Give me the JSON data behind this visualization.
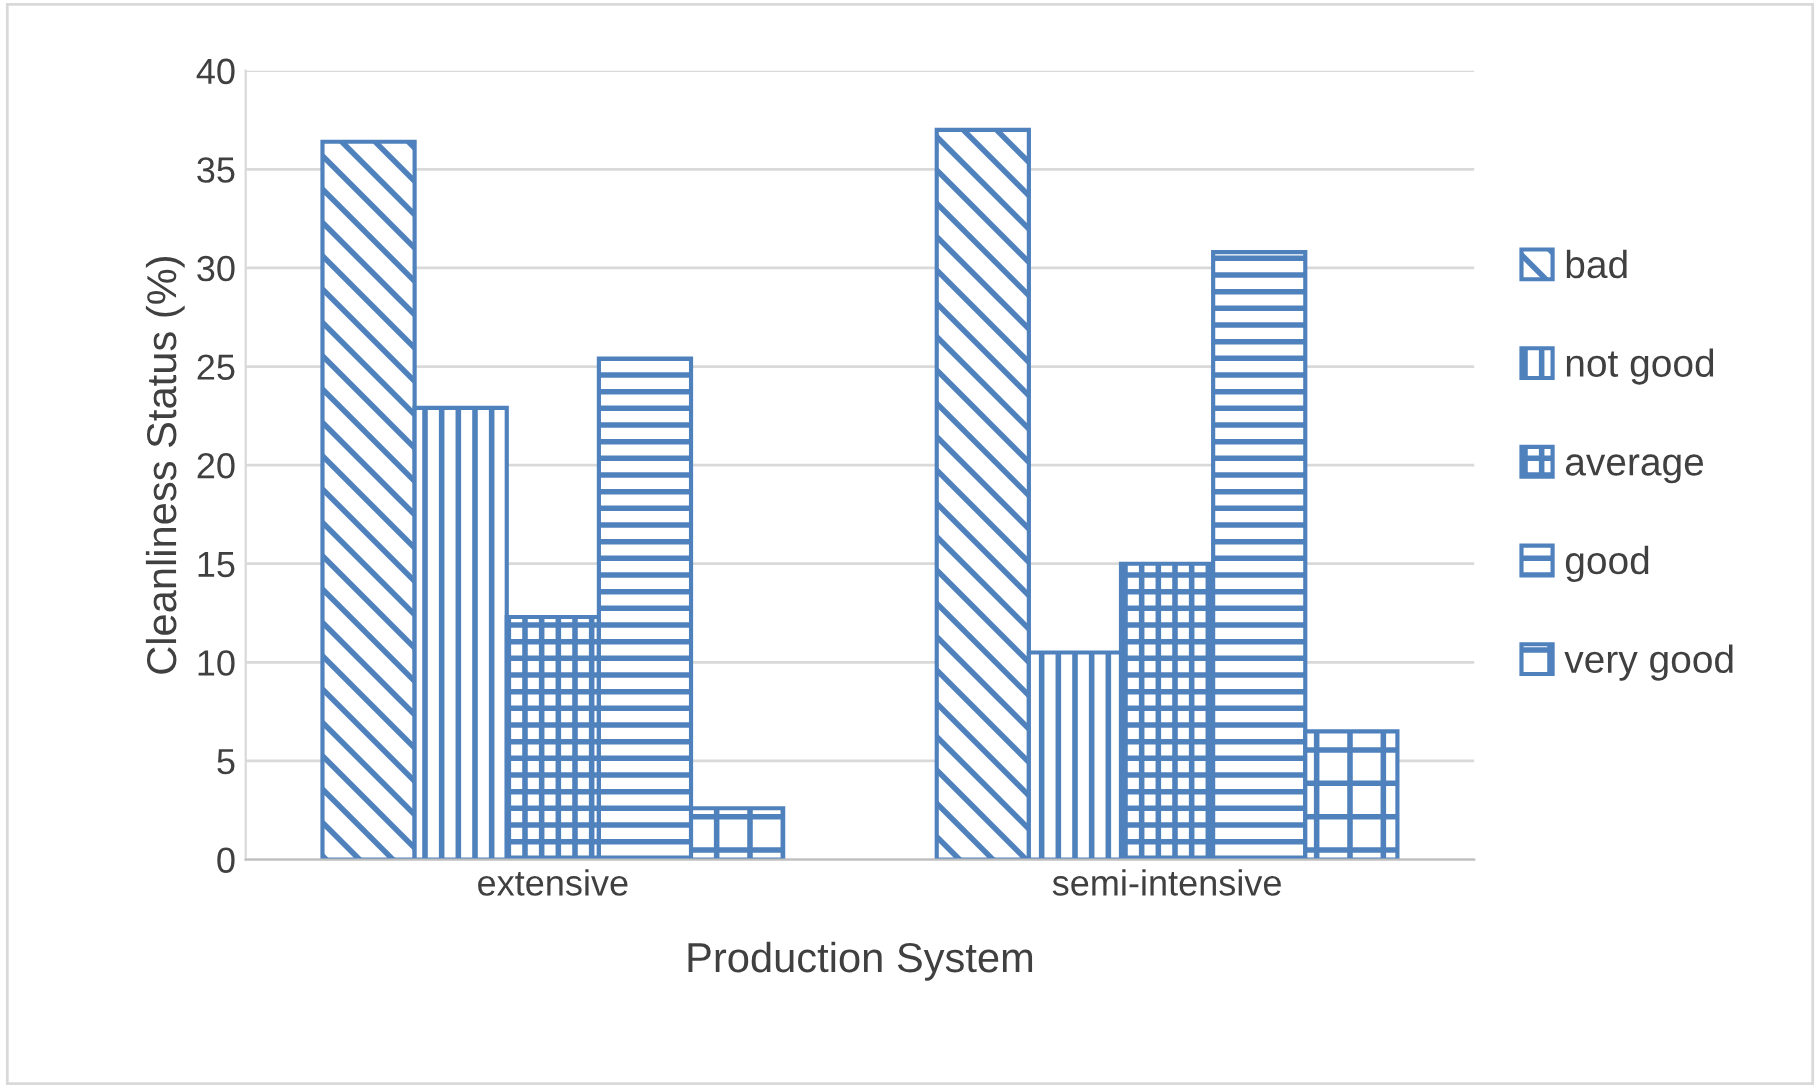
{
  "chart_data": {
    "type": "bar",
    "xlabel": "Production System",
    "ylabel": "Cleanliness Status (%)",
    "categories": [
      "extensive",
      "semi-intensive"
    ],
    "series": [
      {
        "name": "bad",
        "color": "#4f81bd",
        "values": [
          36.4,
          37.0
        ]
      },
      {
        "name": "not good",
        "color": "#4f81bd",
        "values": [
          22.9,
          10.5
        ]
      },
      {
        "name": "average",
        "color": "#4f81bd",
        "values": [
          12.3,
          15.0
        ]
      },
      {
        "name": "good",
        "color": "#4f81bd",
        "values": [
          25.4,
          30.8
        ]
      },
      {
        "name": "very good",
        "color": "#4f81bd",
        "values": [
          2.6,
          6.5
        ]
      }
    ],
    "ylim": [
      0,
      40
    ],
    "yticks": [
      0,
      5,
      10,
      15,
      20,
      25,
      30,
      35,
      40
    ],
    "grid": "y",
    "legend": "right"
  }
}
